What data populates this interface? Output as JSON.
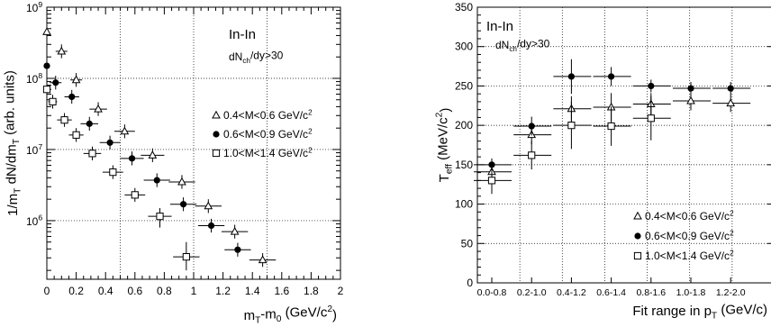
{
  "chart_data": [
    {
      "type": "scatter",
      "title": "In-In",
      "subtitle": "dN_ch/dy>30",
      "xlabel": "m_T-m_0 (GeV/c^2)",
      "ylabel": "1/m_T dN/dm_T (arb. units)",
      "xlim": [
        0,
        2
      ],
      "ylim": [
        150000,
        1000000000
      ],
      "yscale": "log",
      "grid": true,
      "legend_position": "right",
      "x_ticks": [
        "0",
        "0.2",
        "0.4",
        "0.6",
        "0.8",
        "1",
        "1.2",
        "1.4",
        "1.6",
        "1.8",
        "2"
      ],
      "y_ticks": [
        {
          "base": "10",
          "exp": "6",
          "value": 1000000
        },
        {
          "base": "10",
          "exp": "7",
          "value": 10000000
        },
        {
          "base": "10",
          "exp": "8",
          "value": 100000000
        },
        {
          "base": "10",
          "exp": "9",
          "value": 1000000000
        }
      ],
      "series": [
        {
          "name": "0.4<M<0.6 GeV/c^2",
          "marker": "triangle-open",
          "points": [
            {
              "x": 0.0,
              "y": 450000000,
              "xerr": 0.01
            },
            {
              "x": 0.1,
              "y": 240000000,
              "xerr": 0.04
            },
            {
              "x": 0.2,
              "y": 95000000,
              "xerr": 0.04
            },
            {
              "x": 0.35,
              "y": 37000000,
              "xerr": 0.06
            },
            {
              "x": 0.53,
              "y": 18000000,
              "xerr": 0.07
            },
            {
              "x": 0.72,
              "y": 8300000,
              "xerr": 0.08
            },
            {
              "x": 0.92,
              "y": 3500000,
              "xerr": 0.09
            },
            {
              "x": 1.1,
              "y": 1600000,
              "xerr": 0.09
            },
            {
              "x": 1.28,
              "y": 700000,
              "xerr": 0.09
            },
            {
              "x": 1.47,
              "y": 280000,
              "xerr": 0.09
            }
          ]
        },
        {
          "name": "0.6<M<0.9 GeV/c^2",
          "marker": "circle-filled",
          "points": [
            {
              "x": 0.0,
              "y": 150000000,
              "xerr": 0.01
            },
            {
              "x": 0.06,
              "y": 87000000,
              "xerr": 0.04
            },
            {
              "x": 0.17,
              "y": 55000000,
              "xerr": 0.05
            },
            {
              "x": 0.29,
              "y": 23000000,
              "xerr": 0.06
            },
            {
              "x": 0.43,
              "y": 12500000,
              "xerr": 0.07
            },
            {
              "x": 0.58,
              "y": 7500000,
              "xerr": 0.08
            },
            {
              "x": 0.75,
              "y": 3700000,
              "xerr": 0.09
            },
            {
              "x": 0.93,
              "y": 1700000,
              "xerr": 0.09
            },
            {
              "x": 1.12,
              "y": 850000,
              "xerr": 0.09
            },
            {
              "x": 1.3,
              "y": 390000,
              "xerr": 0.09
            }
          ]
        },
        {
          "name": "1.0<M<1.4 GeV/c^2",
          "marker": "square-open",
          "points": [
            {
              "x": 0.0,
              "y": 70000000,
              "xerr": 0.01
            },
            {
              "x": 0.04,
              "y": 47000000,
              "xerr": 0.03
            },
            {
              "x": 0.12,
              "y": 26000000,
              "xerr": 0.05
            },
            {
              "x": 0.2,
              "y": 16000000,
              "xerr": 0.05
            },
            {
              "x": 0.31,
              "y": 8800000,
              "xerr": 0.06
            },
            {
              "x": 0.45,
              "y": 4800000,
              "xerr": 0.07
            },
            {
              "x": 0.6,
              "y": 2300000,
              "xerr": 0.07
            },
            {
              "x": 0.77,
              "y": 1150000,
              "xerr": 0.08,
              "ylo": 800000,
              "yhi": 1500000
            },
            {
              "x": 0.95,
              "y": 310000,
              "xerr": 0.09,
              "ylo": 200000,
              "yhi": 500000
            }
          ]
        }
      ]
    },
    {
      "type": "scatter",
      "title": "In-In",
      "subtitle": "dN_ch/dy>30",
      "xlabel": "Fit range in p_T (GeV/c)",
      "ylabel": "T_eff (MeV/c^2)",
      "ylim": [
        0,
        350
      ],
      "grid": true,
      "legend_position": "bottom-right",
      "categories": [
        "0.0-0.8",
        "0.2-1.0",
        "0.4-1.2",
        "0.6-1.4",
        "0.8-1.6",
        "1.0-1.8",
        "1.2-2.0"
      ],
      "y_ticks": [
        "0",
        "50",
        "100",
        "150",
        "200",
        "250",
        "300",
        "350"
      ],
      "series": [
        {
          "name": "0.4<M<0.6 GeV/c^2",
          "marker": "triangle-open",
          "values": [
            141,
            188,
            221,
            223,
            227,
            231,
            228
          ],
          "errors": [
            10,
            12,
            16,
            18,
            14,
            12,
            11
          ]
        },
        {
          "name": "0.6<M<0.9 GeV/c^2",
          "marker": "circle-filled",
          "values": [
            150,
            199,
            262,
            262,
            250,
            247,
            247
          ],
          "errors": [
            8,
            12,
            22,
            12,
            8,
            8,
            8
          ]
        },
        {
          "name": "1.0<M<1.4 GeV/c^2",
          "marker": "square-open",
          "values": [
            130,
            162,
            200,
            199,
            209,
            null,
            null
          ],
          "errors": [
            17,
            18,
            30,
            25,
            28,
            null,
            null
          ]
        }
      ]
    }
  ]
}
